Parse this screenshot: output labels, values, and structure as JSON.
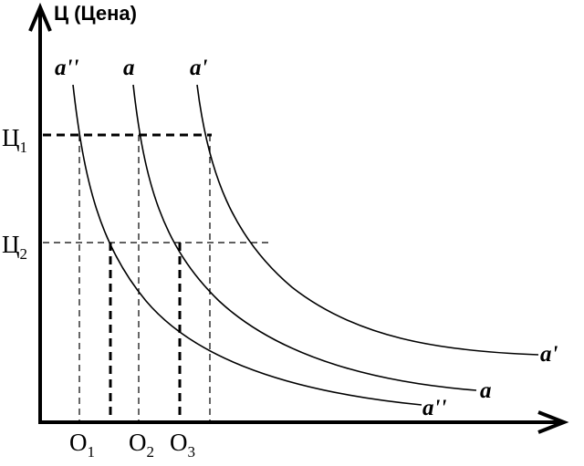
{
  "y_axis_title": "Ц (Цена)",
  "price_levels": [
    {
      "base": "Ц",
      "sub": "1"
    },
    {
      "base": "Ц",
      "sub": "2"
    }
  ],
  "quantities": [
    {
      "base": "O",
      "sub": "1"
    },
    {
      "base": "O",
      "sub": "2"
    },
    {
      "base": "O",
      "sub": "3"
    }
  ],
  "curves": [
    {
      "id": "a2",
      "top_label": "a''",
      "end_label": "a''"
    },
    {
      "id": "a",
      "top_label": "a",
      "end_label": "a"
    },
    {
      "id": "a1",
      "top_label": "a'",
      "end_label": "a'"
    }
  ]
}
